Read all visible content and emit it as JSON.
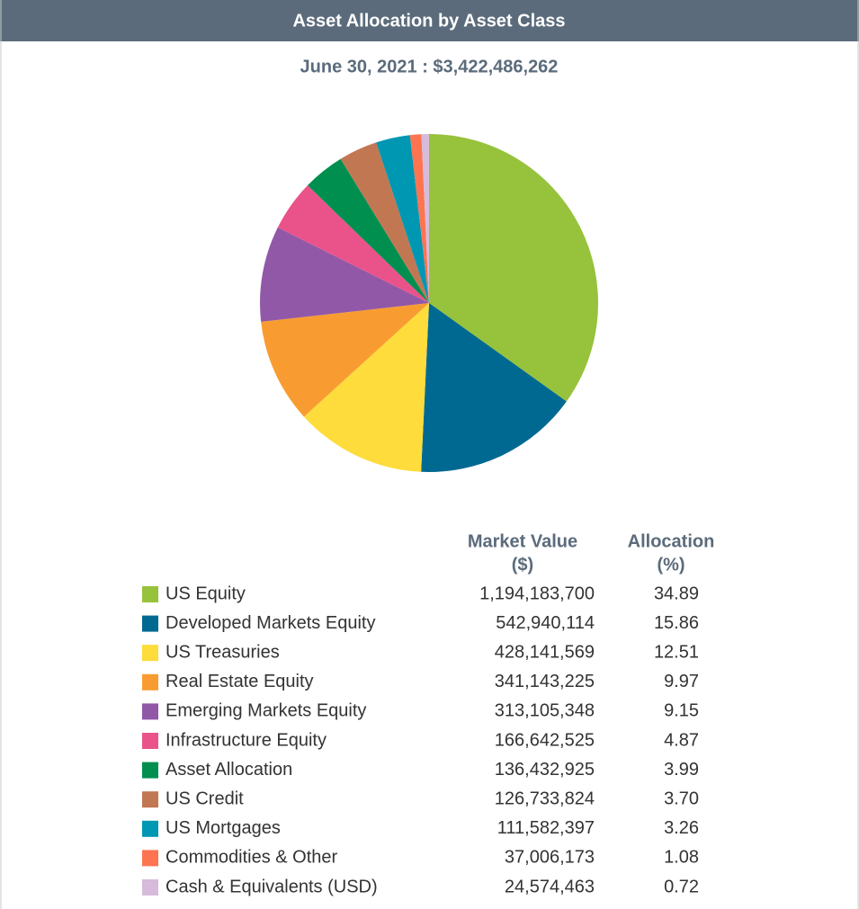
{
  "chart_data": {
    "type": "pie",
    "title": "Asset Allocation by Asset Class",
    "subtitle": "June 30, 2021 : $3,422,486,262",
    "columns": [
      [
        "Market Value",
        "($)"
      ],
      [
        "Allocation",
        "(%)"
      ]
    ],
    "categories": [
      "US Equity",
      "Developed Markets Equity",
      "US Treasuries",
      "Real Estate Equity",
      "Emerging Markets Equity",
      "Infrastructure Equity",
      "Asset Allocation",
      "US Credit",
      "US Mortgages",
      "Commodities & Other",
      "Cash & Equivalents (USD)"
    ],
    "market_values": [
      "1,194,183,700",
      "542,940,114",
      "428,141,569",
      "341,143,225",
      "313,105,348",
      "166,642,525",
      "136,432,925",
      "126,733,824",
      "111,582,397",
      "37,006,173",
      "24,574,463"
    ],
    "values": [
      34.89,
      15.86,
      12.51,
      9.97,
      9.15,
      4.87,
      3.99,
      3.7,
      3.26,
      1.08,
      0.72
    ],
    "value_labels": [
      "34.89",
      "15.86",
      "12.51",
      "9.97",
      "9.15",
      "4.87",
      "3.99",
      "3.70",
      "3.26",
      "1.08",
      "0.72"
    ],
    "colors": [
      "#97c23c",
      "#006991",
      "#fddc3b",
      "#f89c31",
      "#9158a8",
      "#e9538a",
      "#008f4f",
      "#c27753",
      "#0097b2",
      "#fd7451",
      "#d6bbdb"
    ]
  }
}
